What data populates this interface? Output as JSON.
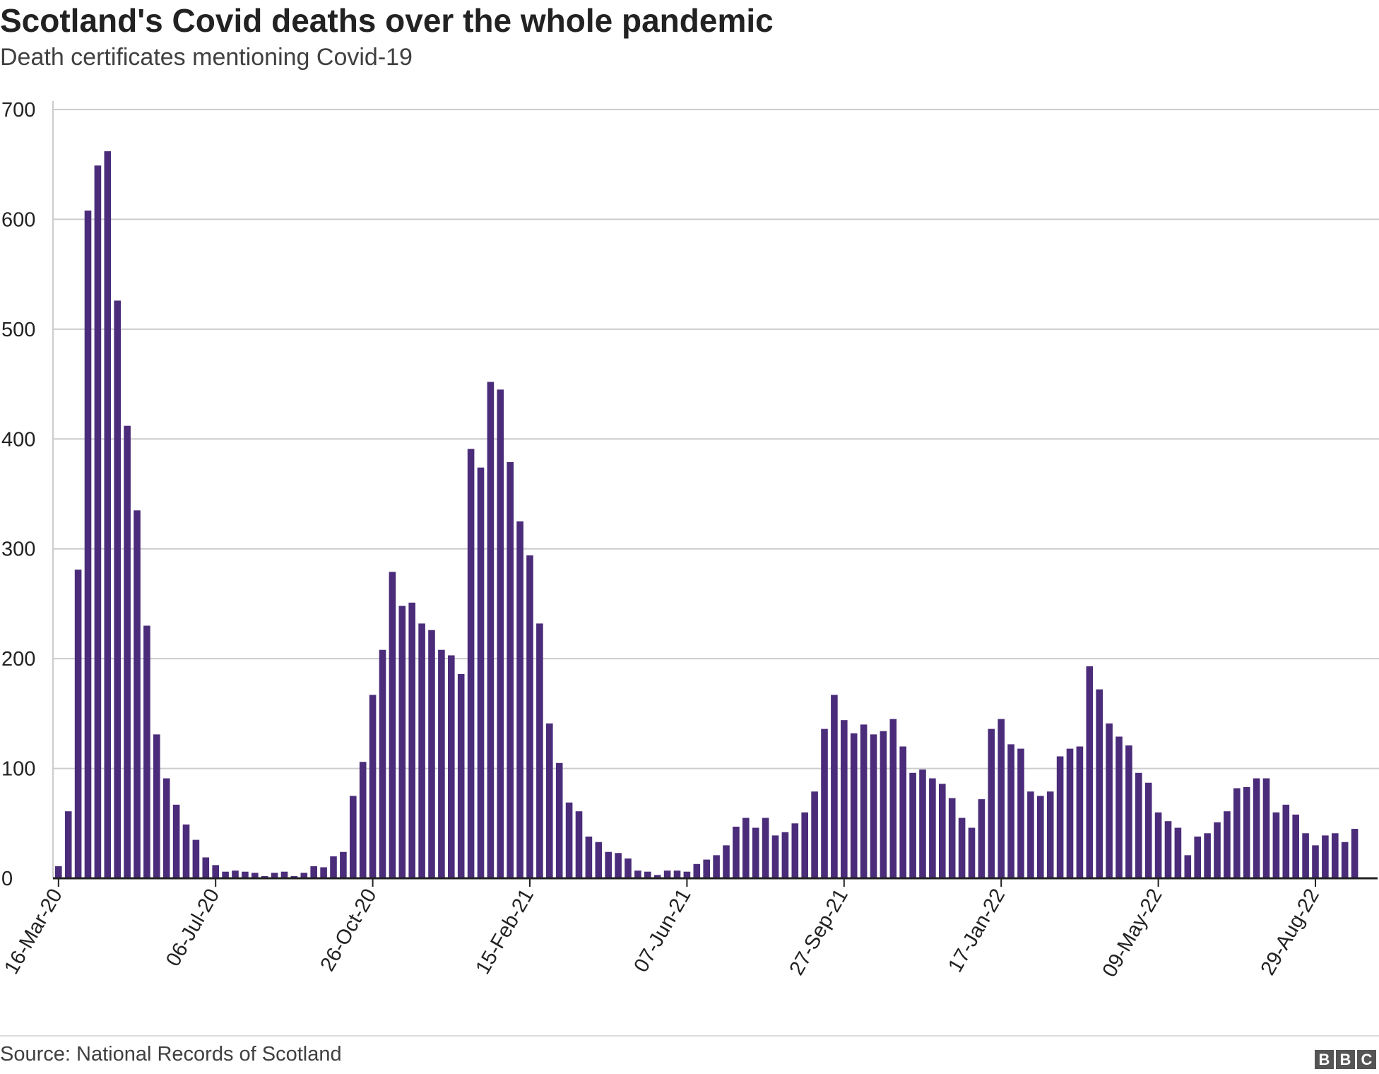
{
  "header": {
    "title": "Scotland's Covid deaths over the whole pandemic",
    "subtitle": "Death certificates mentioning Covid-19"
  },
  "footer": {
    "source": "Source: National Records of Scotland",
    "logo_letters": [
      "B",
      "B",
      "C"
    ]
  },
  "colors": {
    "bar": "#4b2c7a",
    "gridline": "#cccccc",
    "axis": "#222222"
  },
  "chart_data": {
    "type": "bar",
    "title": "Scotland's Covid deaths over the whole pandemic",
    "subtitle": "Death certificates mentioning Covid-19",
    "xlabel": "",
    "ylabel": "",
    "ylim": [
      0,
      700
    ],
    "yticks": [
      0,
      100,
      200,
      300,
      400,
      500,
      600,
      700
    ],
    "grid": true,
    "legend": "none",
    "x_tick_labels": [
      {
        "label": "16-Mar-20",
        "index": 0
      },
      {
        "label": "06-Jul-20",
        "index": 16
      },
      {
        "label": "26-Oct-20",
        "index": 32
      },
      {
        "label": "15-Feb-21",
        "index": 48
      },
      {
        "label": "07-Jun-21",
        "index": 64
      },
      {
        "label": "27-Sep-21",
        "index": 80
      },
      {
        "label": "17-Jan-22",
        "index": 96
      },
      {
        "label": "09-May-22",
        "index": 112
      },
      {
        "label": "29-Aug-22",
        "index": 128
      }
    ],
    "values": [
      11,
      61,
      281,
      608,
      649,
      662,
      526,
      412,
      335,
      230,
      131,
      91,
      67,
      49,
      35,
      19,
      12,
      6,
      7,
      6,
      5,
      2,
      5,
      6,
      2,
      5,
      11,
      10,
      20,
      24,
      75,
      106,
      167,
      208,
      279,
      248,
      251,
      232,
      226,
      208,
      203,
      186,
      391,
      374,
      452,
      445,
      379,
      325,
      294,
      232,
      141,
      105,
      69,
      61,
      38,
      33,
      24,
      23,
      18,
      7,
      6,
      3,
      7,
      7,
      6,
      13,
      17,
      21,
      30,
      47,
      55,
      46,
      55,
      39,
      42,
      50,
      60,
      79,
      136,
      167,
      144,
      132,
      140,
      131,
      134,
      145,
      120,
      96,
      99,
      91,
      86,
      73,
      55,
      46,
      72,
      136,
      145,
      122,
      118,
      79,
      75,
      79,
      111,
      118,
      120,
      193,
      172,
      141,
      129,
      121,
      96,
      87,
      60,
      52,
      46,
      21,
      38,
      41,
      51,
      61,
      82,
      83,
      91,
      91,
      60,
      67,
      58,
      41,
      30,
      39,
      41,
      33,
      45
    ]
  }
}
